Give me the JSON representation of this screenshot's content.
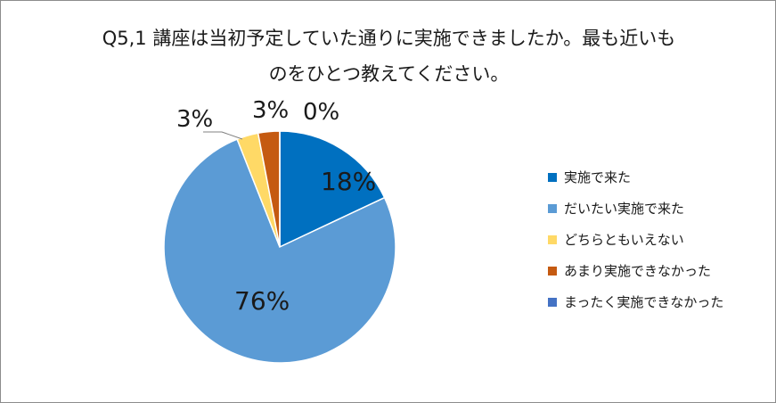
{
  "chart_data": {
    "type": "pie",
    "title_lines": [
      "Q5,1 講座は当初予定していた通りに実施できましたか。最も近いも",
      "のをひとつ教えてください。"
    ],
    "series": [
      {
        "name": "実施で来た",
        "value": 18,
        "label": "18%",
        "color": "#0070c0"
      },
      {
        "name": "だいたい実施で来た",
        "value": 76,
        "label": "76%",
        "color": "#5b9bd5"
      },
      {
        "name": "どちらともいえない",
        "value": 3,
        "label": "3%",
        "color": "#ffd966"
      },
      {
        "name": "あまり実施できなかった",
        "value": 3,
        "label": "3%",
        "color": "#c55a11"
      },
      {
        "name": "まったく実施できなかった",
        "value": 0,
        "label": "0%",
        "color": "#4472c4"
      }
    ],
    "legend_position": "right"
  }
}
